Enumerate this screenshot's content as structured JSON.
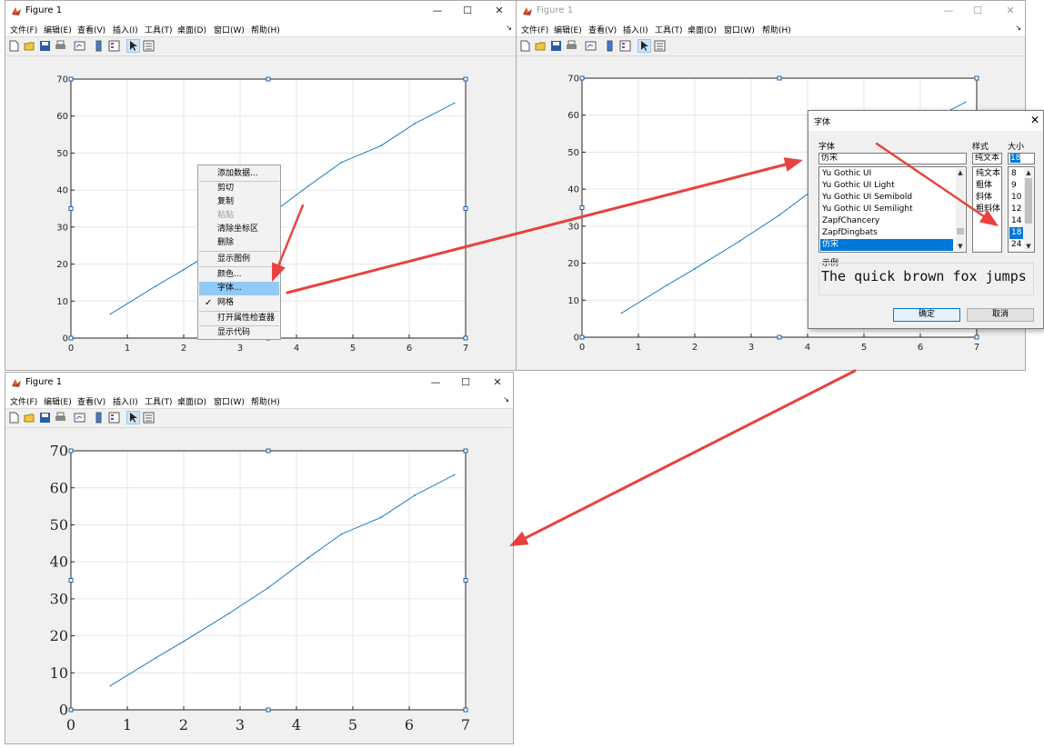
{
  "colors": {
    "plot_line": "#0072bd",
    "arrow": "#e8413e",
    "highlight": "#91c9f7",
    "selection": "#0078d7"
  },
  "icons": [
    "matlab-figure-icon",
    "new-figure-icon",
    "open-icon",
    "save-icon",
    "print-icon",
    "link-plot-icon",
    "colorbar-icon",
    "legend-icon",
    "edit-plot-icon",
    "property-inspector-icon"
  ],
  "windows": [
    {
      "title": "Figure 1",
      "minimize": "—",
      "maximize": "☐",
      "close": "✕",
      "menu": [
        "文件(F)",
        "编辑(E)",
        "查看(V)",
        "插入(I)",
        "工具(T)",
        "桌面(D)",
        "窗口(W)",
        "帮助(H)"
      ],
      "dock_arrow": "↘"
    },
    {
      "title": "Figure 1",
      "minimize": "—",
      "maximize": "☐",
      "close": "✕",
      "menu": [
        "文件(F)",
        "编辑(E)",
        "查看(V)",
        "插入(I)",
        "工具(T)",
        "桌面(D)",
        "窗口(W)",
        "帮助(H)"
      ],
      "dock_arrow": "↘"
    },
    {
      "title": "Figure 1",
      "minimize": "—",
      "maximize": "☐",
      "close": "✕",
      "menu": [
        "文件(F)",
        "编辑(E)",
        "查看(V)",
        "插入(I)",
        "工具(T)",
        "桌面(D)",
        "窗口(W)",
        "帮助(H)"
      ],
      "dock_arrow": "↘"
    }
  ],
  "context_menu": {
    "items": [
      "添加数据...",
      "剪切",
      "复制",
      "粘贴",
      "清除坐标区",
      "删除",
      "显示图例",
      "颜色...",
      "字体...",
      "网格",
      "打开属性检查器",
      "显示代码"
    ],
    "highlighted": "字体...",
    "checked": "网格",
    "disabled": "粘贴",
    "check_mark": "✓"
  },
  "font_dialog": {
    "title": "字体",
    "close": "✕",
    "font_label": "字体",
    "font_value": "仿宋",
    "font_list": [
      "Yu Gothic UI",
      "Yu Gothic UI Light",
      "Yu Gothic UI Semibold",
      "Yu Gothic UI Semilight",
      "ZapfChancery",
      "ZapfDingbats",
      "仿宋"
    ],
    "style_label": "样式",
    "style_value": "纯文本",
    "style_list": [
      "纯文本",
      "粗体",
      "斜体",
      "粗斜体"
    ],
    "size_label": "大小",
    "size_value": "18",
    "size_list": [
      "8",
      "9",
      "10",
      "12",
      "14",
      "18",
      "24"
    ],
    "sample_label": "示例",
    "sample_text": "The quick brown fox jumps",
    "ok": "确定",
    "cancel": "取消",
    "scroll_up": "▲",
    "scroll_down": "▼"
  },
  "chart_data": [
    {
      "type": "line",
      "x": [
        0.7,
        1.5,
        2.0,
        2.8,
        3.5,
        4.2,
        4.8,
        5.5,
        6.1,
        6.8
      ],
      "series": [
        {
          "values": [
            6.5,
            14.0,
            18.5,
            26.0,
            33.0,
            41.0,
            47.5,
            52.0,
            58.0,
            63.5
          ]
        }
      ],
      "xlim": [
        0,
        7
      ],
      "ylim": [
        0,
        70
      ],
      "xticks": [
        "0",
        "1",
        "2",
        "3",
        "4",
        "5",
        "6",
        "7"
      ],
      "yticks": [
        "0",
        "10",
        "20",
        "30",
        "40",
        "50",
        "60",
        "70"
      ],
      "grid": true
    },
    {
      "type": "line",
      "x": [
        0.7,
        1.5,
        2.0,
        2.8,
        3.5,
        4.2,
        4.8,
        5.5,
        6.1,
        6.8
      ],
      "series": [
        {
          "values": [
            6.5,
            14.0,
            18.5,
            26.0,
            33.0,
            41.0,
            47.5,
            52.0,
            58.0,
            63.5
          ]
        }
      ],
      "xlim": [
        0,
        7
      ],
      "ylim": [
        0,
        70
      ],
      "xticks": [
        "0",
        "1",
        "2",
        "3",
        "4",
        "5",
        "6",
        "7"
      ],
      "yticks": [
        "0",
        "10",
        "20",
        "30",
        "40",
        "50",
        "60",
        "70"
      ],
      "grid": true
    },
    {
      "type": "line",
      "x": [
        0.7,
        1.5,
        2.0,
        2.8,
        3.5,
        4.2,
        4.8,
        5.5,
        6.1,
        6.8
      ],
      "series": [
        {
          "values": [
            6.5,
            14.0,
            18.5,
            26.0,
            33.0,
            41.0,
            47.5,
            52.0,
            58.0,
            63.5
          ]
        }
      ],
      "xlim": [
        0,
        7
      ],
      "ylim": [
        0,
        70
      ],
      "xticks": [
        "0",
        "1",
        "2",
        "3",
        "4",
        "5",
        "6",
        "7"
      ],
      "yticks": [
        "0",
        "10",
        "20",
        "30",
        "40",
        "50",
        "60",
        "70"
      ],
      "grid": true
    }
  ]
}
